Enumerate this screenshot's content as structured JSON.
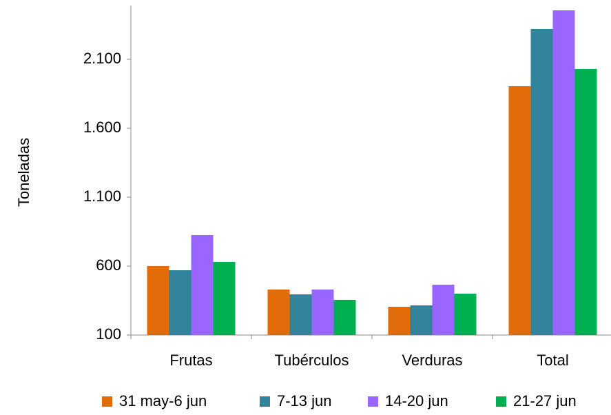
{
  "chart_data": {
    "type": "bar",
    "y_label": "Toneladas",
    "categories": [
      "Frutas",
      "Tubérculos",
      "Verduras",
      "Total"
    ],
    "series": [
      {
        "name": "31 may-6 jun",
        "color": "#e36c0a",
        "values": [
          600,
          430,
          305,
          1905
        ]
      },
      {
        "name": "7-13 jun",
        "color": "#31849b",
        "values": [
          570,
          395,
          315,
          2320
        ]
      },
      {
        "name": "14-20 jun",
        "color": "#9966ff",
        "values": [
          825,
          430,
          465,
          2455
        ]
      },
      {
        "name": "21-27 jun",
        "color": "#00b050",
        "values": [
          630,
          355,
          400,
          2030
        ]
      }
    ],
    "ylim": [
      100,
      2490
    ],
    "yticks": [
      100,
      600,
      {
        "value": 1100,
        "label": "1.100"
      },
      {
        "value": 1600,
        "label": "1.600"
      },
      {
        "value": 2100,
        "label": "2.100"
      }
    ],
    "grid": false,
    "legend": "bottom"
  }
}
